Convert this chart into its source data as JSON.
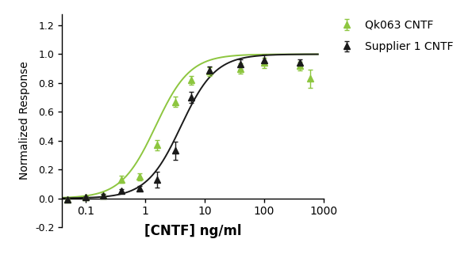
{
  "xlabel": "[CNTF] ng/ml",
  "ylabel": "Normalized Response",
  "xlim": [
    0.04,
    800
  ],
  "ylim": [
    -0.2,
    1.28
  ],
  "yticks": [
    -0.2,
    0.0,
    0.2,
    0.4,
    0.6,
    0.8,
    1.0,
    1.2
  ],
  "ytick_labels": [
    "-0.2",
    "0.0",
    "0.2",
    "0.4",
    "0.6",
    "0.8",
    "1.0",
    "1.2"
  ],
  "xticks": [
    0.1,
    1,
    10,
    100,
    1000
  ],
  "xtick_labels": [
    "0.1",
    "1",
    "10",
    "100",
    "1000"
  ],
  "qk063_x": [
    0.05,
    0.1,
    0.2,
    0.4,
    0.8,
    1.6,
    3.2,
    6.0,
    12.0,
    40.0,
    100.0,
    400.0,
    600.0
  ],
  "qk063_y": [
    -0.01,
    0.01,
    0.02,
    0.13,
    0.15,
    0.37,
    0.67,
    0.82,
    0.88,
    0.9,
    0.94,
    0.92,
    0.83
  ],
  "qk063_yerr": [
    0.005,
    0.005,
    0.01,
    0.025,
    0.025,
    0.035,
    0.035,
    0.03,
    0.03,
    0.035,
    0.035,
    0.03,
    0.065
  ],
  "sup1_x": [
    0.05,
    0.1,
    0.2,
    0.4,
    0.8,
    1.6,
    3.2,
    6.0,
    12.0,
    40.0,
    100.0,
    400.0
  ],
  "sup1_y": [
    -0.01,
    0.01,
    0.02,
    0.05,
    0.07,
    0.13,
    0.33,
    0.7,
    0.89,
    0.93,
    0.96,
    0.94
  ],
  "sup1_yerr": [
    0.005,
    0.005,
    0.01,
    0.015,
    0.015,
    0.055,
    0.065,
    0.04,
    0.025,
    0.035,
    0.035,
    0.025
  ],
  "color_qk063": "#8dc63f",
  "color_sup1": "#1a1a1a",
  "legend_qk063": "Qk063 CNTF",
  "legend_sup1": "Supplier 1 CNTF",
  "bg_color": "#ffffff",
  "xlabel_fontsize": 12,
  "ylabel_fontsize": 10,
  "legend_fontsize": 10,
  "tick_fontsize": 9,
  "figsize": [
    6.0,
    3.5
  ],
  "dpi": 100
}
